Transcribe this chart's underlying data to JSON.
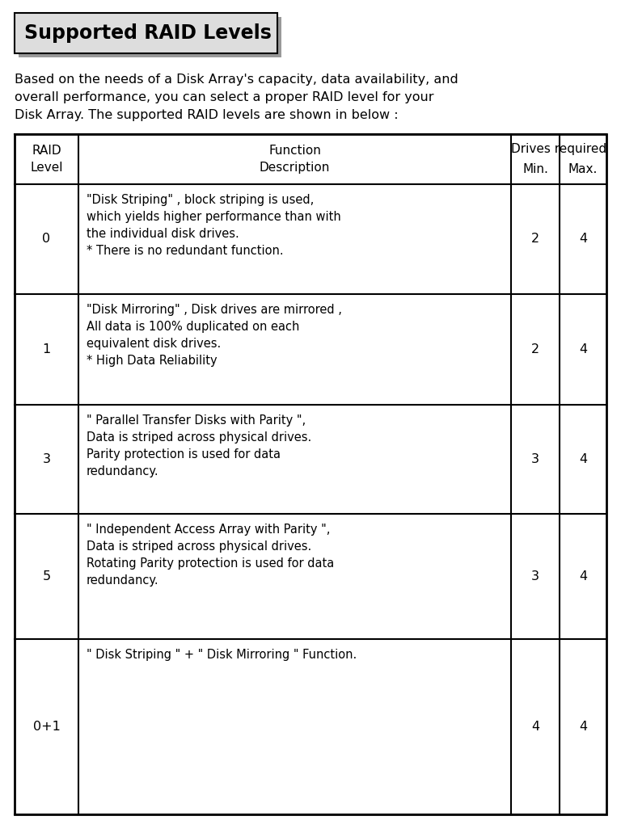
{
  "title": "Supported RAID Levels",
  "intro_text": "Based on the needs of a Disk Array's capacity, data availability, and\noverall performance, you can select a proper RAID level for your\nDisk Array. The supported RAID levels are shown in below :",
  "rows": [
    {
      "level": "0",
      "description": "\"Disk Striping\" , block striping is used,\nwhich yields higher performance than with\nthe individual disk drives.\n* There is no redundant function.",
      "min": "2",
      "max": "4"
    },
    {
      "level": "1",
      "description": "\"Disk Mirroring\" , Disk drives are mirrored ,\nAll data is 100% duplicated on each\nequivalent disk drives.\n* High Data Reliability",
      "min": "2",
      "max": "4"
    },
    {
      "level": "3",
      "description": "\" Parallel Transfer Disks with Parity \",\nData is striped across physical drives.\nParity protection is used for data\nredundancy.",
      "min": "3",
      "max": "4"
    },
    {
      "level": "5",
      "description": "\" Independent Access Array with Parity \",\nData is striped across physical drives.\nRotating Parity protection is used for data\nredundancy.",
      "min": "3",
      "max": "4"
    },
    {
      "level": "0+1",
      "description": "\" Disk Striping \" + \" Disk Mirroring \" Function.",
      "min": "4",
      "max": "4"
    }
  ],
  "bg_color": "#ffffff",
  "text_color": "#000000",
  "border_color": "#000000",
  "font_size_title": 17,
  "font_size_intro": 11.5,
  "font_size_table_header": 11,
  "font_size_table_body": 10.5
}
